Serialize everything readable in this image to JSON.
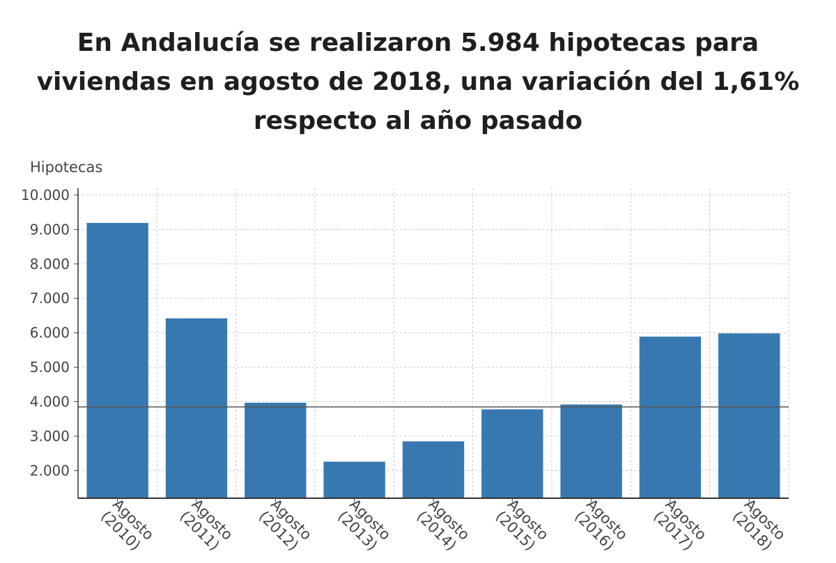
{
  "chart_data": {
    "type": "bar",
    "title": "En Andalucía se realizaron 5.984 hipotecas para viviendas en agosto de 2018, una variación del 1,61% respecto al año pasado",
    "ylabel": "Hipotecas",
    "xlabel": "",
    "categories": [
      "Agosto (2010)",
      "Agosto (2011)",
      "Agosto (2012)",
      "Agosto (2013)",
      "Agosto (2014)",
      "Agosto (2015)",
      "Agosto (2016)",
      "Agosto (2017)",
      "Agosto (2018)"
    ],
    "category_lines": [
      [
        "Agosto",
        "(2010)"
      ],
      [
        "Agosto",
        "(2011)"
      ],
      [
        "Agosto",
        "(2012)"
      ],
      [
        "Agosto",
        "(2013)"
      ],
      [
        "Agosto",
        "(2014)"
      ],
      [
        "Agosto",
        "(2015)"
      ],
      [
        "Agosto",
        "(2016)"
      ],
      [
        "Agosto",
        "(2017)"
      ],
      [
        "Agosto",
        "(2018)"
      ]
    ],
    "values": [
      9190,
      6420,
      3970,
      2260,
      2850,
      3780,
      3920,
      5890,
      5984
    ],
    "reference_line": 3850,
    "ylim": [
      1200,
      10200
    ],
    "yticks": [
      2000,
      3000,
      4000,
      5000,
      6000,
      7000,
      8000,
      9000,
      10000
    ],
    "ytick_labels": [
      "2.000",
      "3.000",
      "4.000",
      "5.000",
      "6.000",
      "7.000",
      "8.000",
      "9.000",
      "10.000"
    ],
    "grid": true,
    "bar_color": "#3878b0"
  }
}
